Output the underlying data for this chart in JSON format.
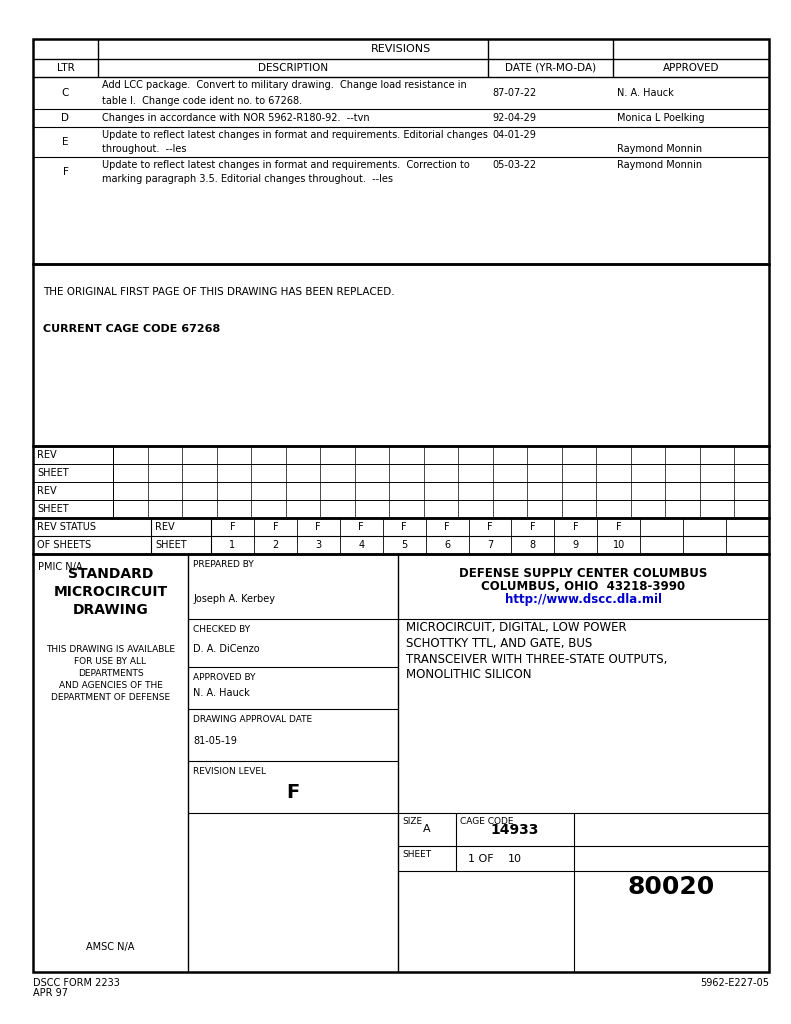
{
  "page_bg": "#ffffff",
  "line_color": "#000000",
  "blue_color": "#0000cd",
  "figsize": [
    7.91,
    10.24
  ],
  "dpi": 100,
  "revisions_title": "REVISIONS",
  "rev_headers": [
    "LTR",
    "DESCRIPTION",
    "DATE (YR-MO-DA)",
    "APPROVED"
  ],
  "rev_rows": [
    {
      "ltr": "C",
      "desc1": "Add LCC package.  Convert to military drawing.  Change load resistance in",
      "desc2": "table I.  Change code ident no. to 67268.",
      "date": "87-07-22",
      "approved": "N. A. Hauck",
      "date_valign": "center",
      "appr_valign": "center"
    },
    {
      "ltr": "D",
      "desc1": "Changes in accordance with NOR 5962-R180-92.  --tvn",
      "desc2": "",
      "date": "92-04-29",
      "approved": "Monica L Poelking",
      "date_valign": "center",
      "appr_valign": "center"
    },
    {
      "ltr": "E",
      "desc1": "Update to reflect latest changes in format and requirements. Editorial changes",
      "desc2": "throughout.  --les",
      "date": "04-01-29",
      "approved": "Raymond Monnin",
      "date_valign": "top",
      "appr_valign": "bottom"
    },
    {
      "ltr": "F",
      "desc1": "Update to reflect latest changes in format and requirements.  Correction to",
      "desc2": "marking paragraph 3.5. Editorial changes throughout.  --les",
      "date": "05-03-22",
      "approved": "Raymond Monnin",
      "date_valign": "top",
      "appr_valign": "top"
    }
  ],
  "middle_text1": "THE ORIGINAL FIRST PAGE OF THIS DRAWING HAS BEEN REPLACED.",
  "middle_text2": "CURRENT CAGE CODE 67268",
  "rev_status_row": [
    "F",
    "F",
    "F",
    "F",
    "F",
    "F",
    "F",
    "F",
    "F",
    "F"
  ],
  "sheet_row": [
    "1",
    "2",
    "3",
    "4",
    "5",
    "6",
    "7",
    "8",
    "9",
    "10"
  ],
  "pmic": "PMIC N/A",
  "prepared_by_label": "PREPARED BY",
  "prepared_by_name": "Joseph A. Kerbey",
  "checked_by_label": "CHECKED BY",
  "checked_by_name": "D. A. DiCenzo",
  "approved_by_label": "APPROVED BY",
  "approved_by_name": "N. A. Hauck",
  "drawing_approval_label": "DRAWING APPROVAL DATE",
  "drawing_approval_date": "81-05-19",
  "revision_level_label": "REVISION LEVEL",
  "revision_level": "F",
  "standard_title_lines": [
    "STANDARD",
    "MICROCIRCUIT",
    "DRAWING"
  ],
  "availability_lines": [
    "THIS DRAWING IS AVAILABLE",
    "FOR USE BY ALL",
    "DEPARTMENTS",
    "AND AGENCIES OF THE",
    "DEPARTMENT OF DEFENSE"
  ],
  "amsc": "AMSC N/A",
  "defense_line1": "DEFENSE SUPPLY CENTER COLUMBUS",
  "defense_line2": "COLUMBUS, OHIO  43218-3990",
  "defense_url": "http://www.dscc.dla.mil",
  "part_desc_lines": [
    "MICROCIRCUIT, DIGITAL, LOW POWER",
    "SCHOTTKY TTL, AND GATE, BUS",
    "TRANSCEIVER WITH THREE-STATE OUTPUTS,",
    "MONOLITHIC SILICON"
  ],
  "size_label": "SIZE",
  "size_value": "A",
  "cage_code_label": "CAGE CODE",
  "cage_code_value": "14933",
  "drawing_number": "80020",
  "sheet_label": "SHEET",
  "sheet_of": "1 OF",
  "sheet_total": "10",
  "form_line1": "DSCC FORM 2233",
  "form_line2": "APR 97",
  "doc_number": "5962-E227-05"
}
